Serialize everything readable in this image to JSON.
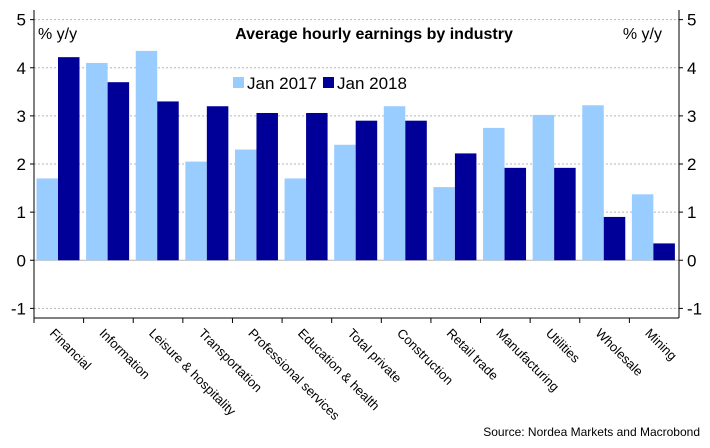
{
  "chart_data": {
    "type": "bar",
    "title": "Average hourly earnings by industry",
    "ylabel_left": "% y/y",
    "ylabel_right": "% y/y",
    "ylim": [
      -1.2,
      5.2
    ],
    "yticks": [
      -1,
      0,
      1,
      2,
      3,
      4,
      5
    ],
    "categories": [
      "Financial",
      "Information",
      "Leisure & hospitality",
      "Transportation",
      "Professional services",
      "Education & health",
      "Total private",
      "Construction",
      "Retail trade",
      "Manufacturing",
      "Utilities",
      "Wholesale",
      "Mining"
    ],
    "series": [
      {
        "name": "Jan 2017",
        "color": "#99ccff",
        "values": [
          1.7,
          4.1,
          4.35,
          2.05,
          2.3,
          1.7,
          2.4,
          3.2,
          1.52,
          2.75,
          3.02,
          3.22,
          1.37
        ]
      },
      {
        "name": "Jan 2018",
        "color": "#000099",
        "values": [
          4.22,
          3.7,
          3.3,
          3.2,
          3.06,
          3.06,
          2.9,
          2.9,
          2.22,
          1.92,
          1.92,
          0.9,
          0.35
        ]
      }
    ],
    "legend_position": "top-center",
    "source": "Source: Nordea Markets and Macrobond"
  }
}
